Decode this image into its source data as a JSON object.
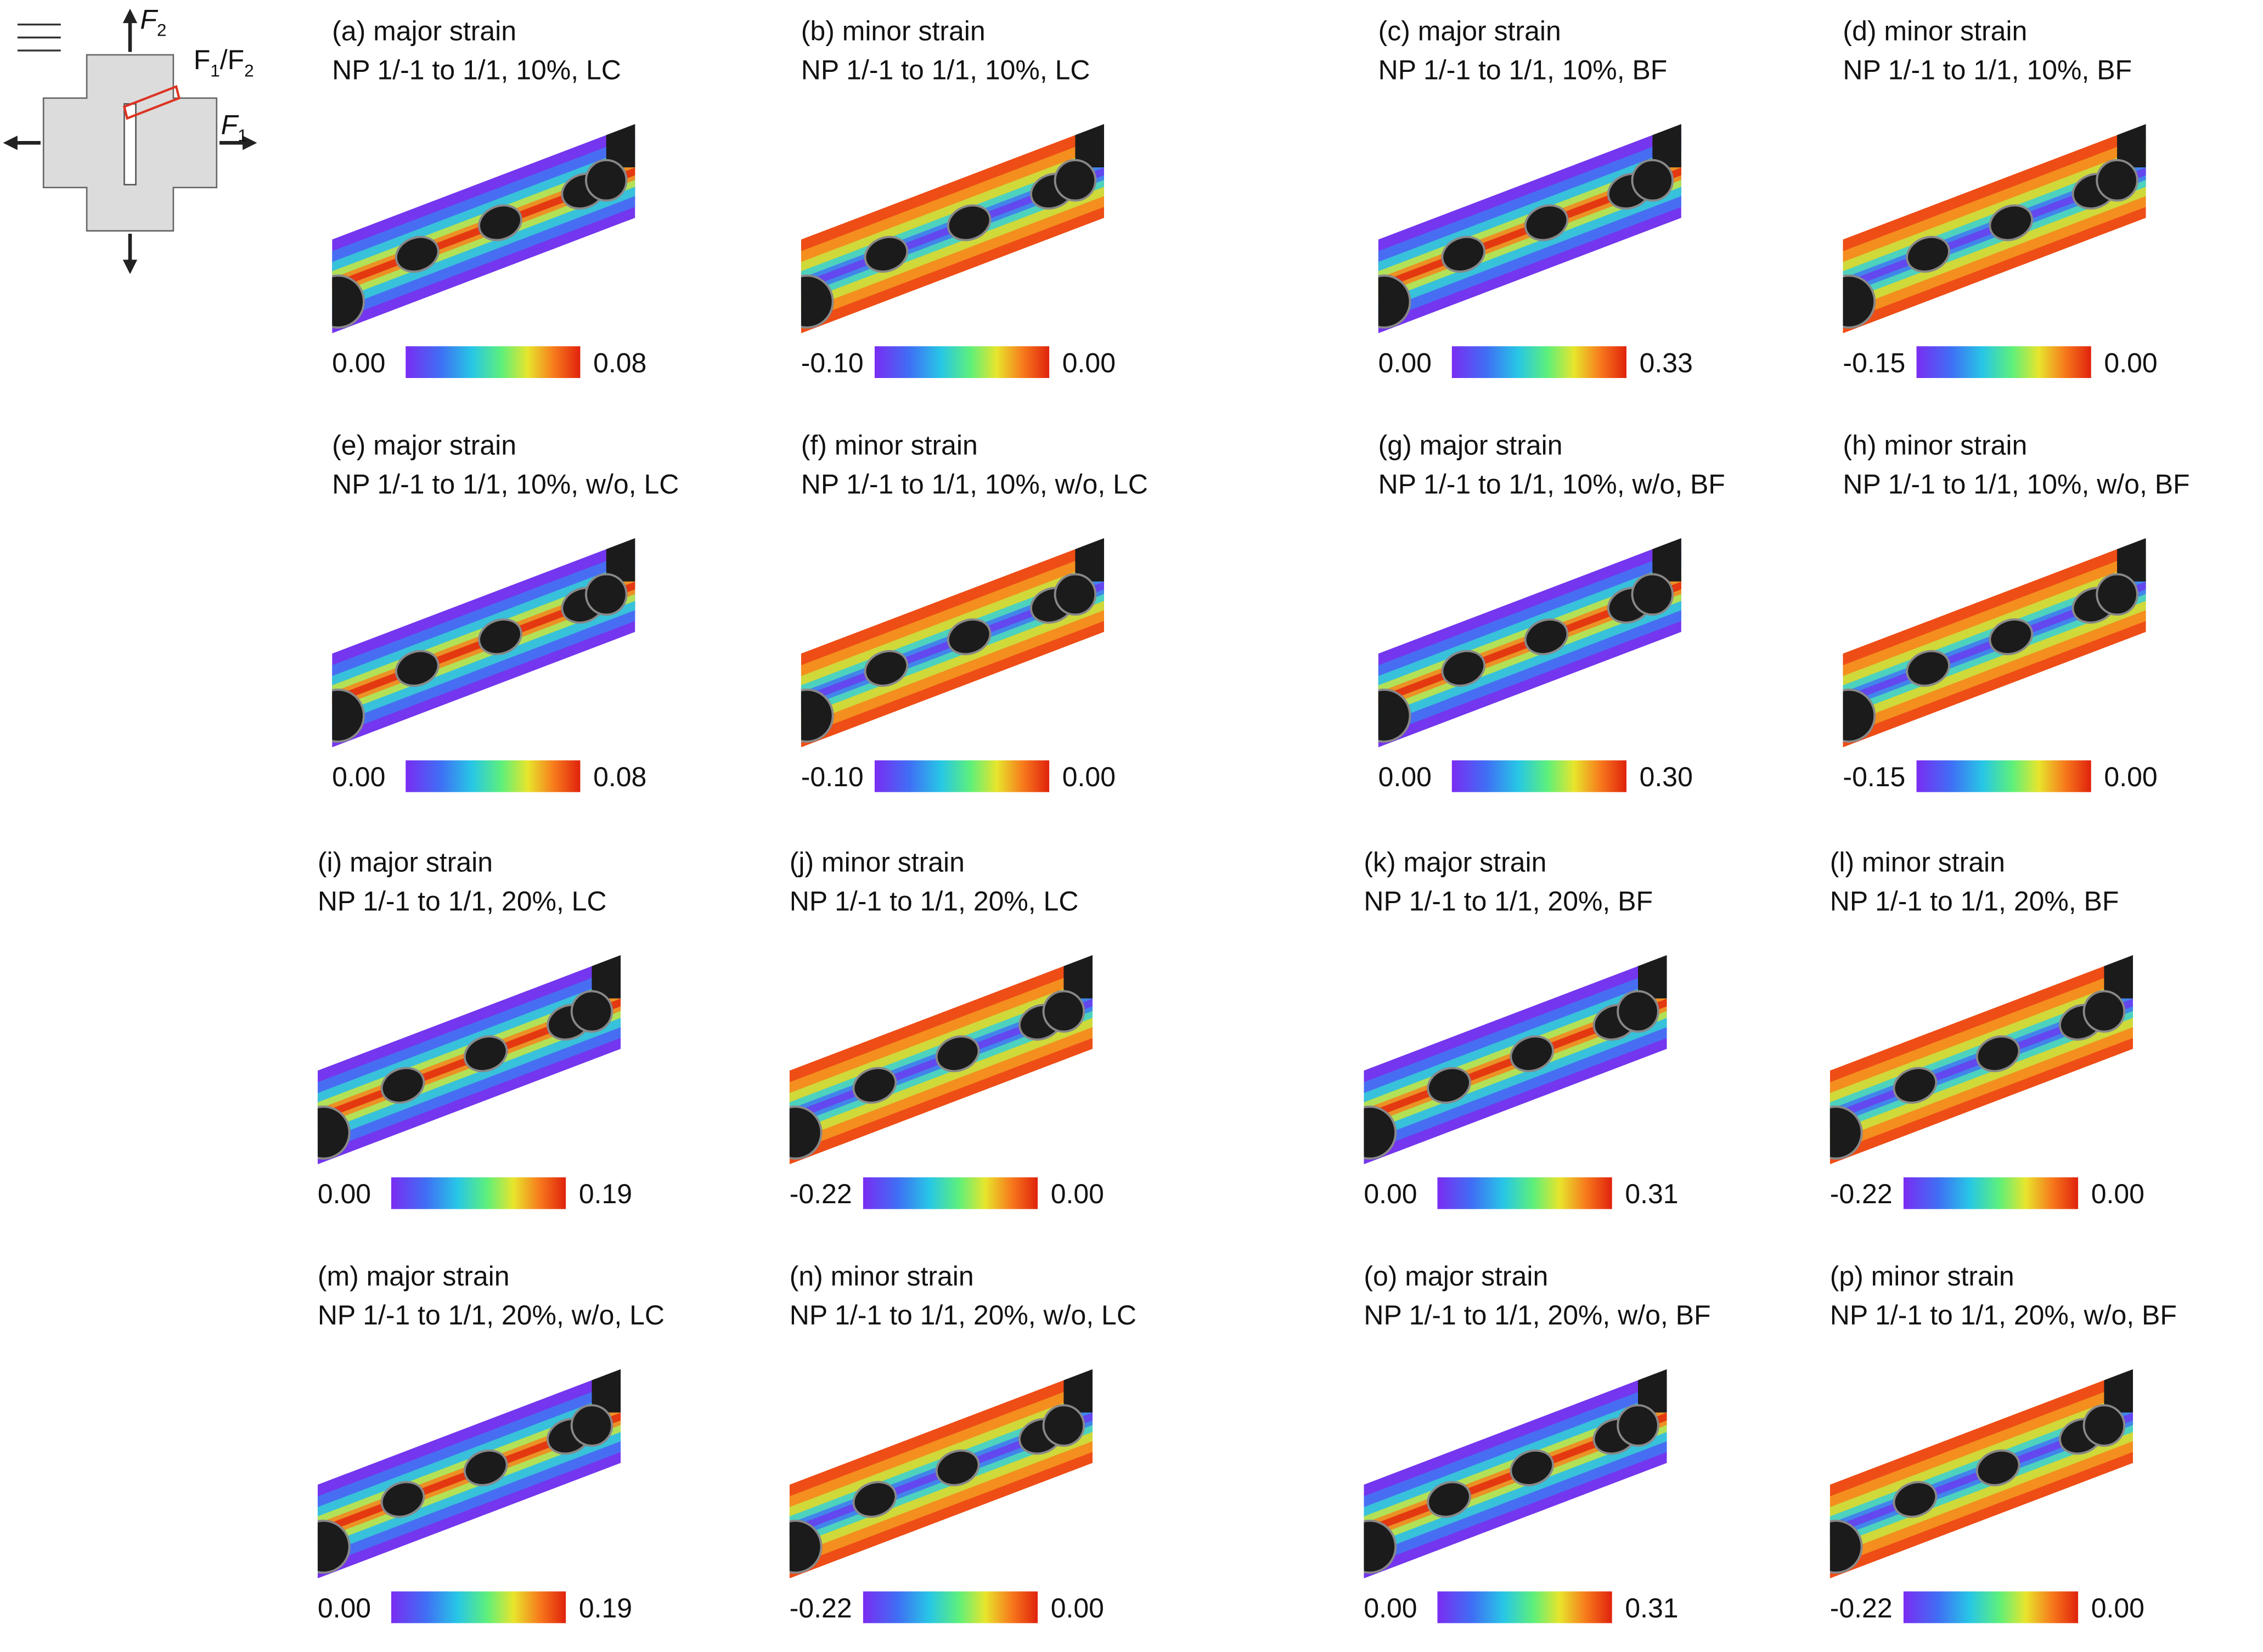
{
  "diagram": {
    "labels": {
      "f2": {
        "base": "F",
        "sub": "2"
      },
      "ratio": {
        "base1": "F",
        "sub1": "1",
        "mid": "/F",
        "sub2": "2"
      },
      "f1": {
        "base": "F",
        "sub": "1"
      }
    }
  },
  "panels": [
    {
      "title": "(a) major strain",
      "subtitle": "NP 1/-1 to 1/1, 10%, LC",
      "colorbar_min": "0.00",
      "colorbar_max": "0.08"
    },
    {
      "title": "(b) minor strain",
      "subtitle": "NP 1/-1 to 1/1, 10%, LC",
      "colorbar_min": "-0.10",
      "colorbar_max": "0.00"
    },
    {
      "title": "(c) major strain",
      "subtitle": "NP 1/-1 to 1/1, 10%, BF",
      "colorbar_min": "0.00",
      "colorbar_max": "0.33"
    },
    {
      "title": "(d) minor strain",
      "subtitle": "NP 1/-1 to 1/1, 10%, BF",
      "colorbar_min": "-0.15",
      "colorbar_max": "0.00"
    },
    {
      "title": "(e) major strain",
      "subtitle": "NP 1/-1 to 1/1, 10%, w/o, LC",
      "colorbar_min": "0.00",
      "colorbar_max": "0.08"
    },
    {
      "title": "(f) minor strain",
      "subtitle": "NP 1/-1 to 1/1, 10%, w/o, LC",
      "colorbar_min": "-0.10",
      "colorbar_max": "0.00"
    },
    {
      "title": "(g) major strain",
      "subtitle": "NP 1/-1 to 1/1, 10%, w/o, BF",
      "colorbar_min": "0.00",
      "colorbar_max": "0.30"
    },
    {
      "title": "(h) minor strain",
      "subtitle": "NP 1/-1 to 1/1, 10%, w/o, BF",
      "colorbar_min": "-0.15",
      "colorbar_max": "0.00"
    },
    {
      "title": "(i) major strain",
      "subtitle": "NP 1/-1 to 1/1, 20%, LC",
      "colorbar_min": "0.00",
      "colorbar_max": "0.19"
    },
    {
      "title": "(j) minor strain",
      "subtitle": "NP 1/-1 to 1/1, 20%, LC",
      "colorbar_min": "-0.22",
      "colorbar_max": "0.00"
    },
    {
      "title": "(k) major strain",
      "subtitle": "NP 1/-1 to 1/1, 20%, BF",
      "colorbar_min": "0.00",
      "colorbar_max": "0.31"
    },
    {
      "title": "(l) minor strain",
      "subtitle": "NP 1/-1 to 1/1, 20%, BF",
      "colorbar_min": "-0.22",
      "colorbar_max": "0.00"
    },
    {
      "title": "(m) major strain",
      "subtitle": "NP 1/-1 to 1/1, 20%, w/o, LC",
      "colorbar_min": "0.00",
      "colorbar_max": "0.19"
    },
    {
      "title": "(n) minor strain",
      "subtitle": "NP 1/-1 to 1/1, 20%, w/o, LC",
      "colorbar_min": "-0.22",
      "colorbar_max": "0.00"
    },
    {
      "title": "(o) major strain",
      "subtitle": "NP 1/-1 to 1/1, 20%, w/o, BF",
      "colorbar_min": "0.00",
      "colorbar_max": "0.31"
    },
    {
      "title": "(p) minor strain",
      "subtitle": "NP 1/-1 to 1/1, 20%, w/o, BF",
      "colorbar_min": "-0.22",
      "colorbar_max": "0.00"
    }
  ]
}
